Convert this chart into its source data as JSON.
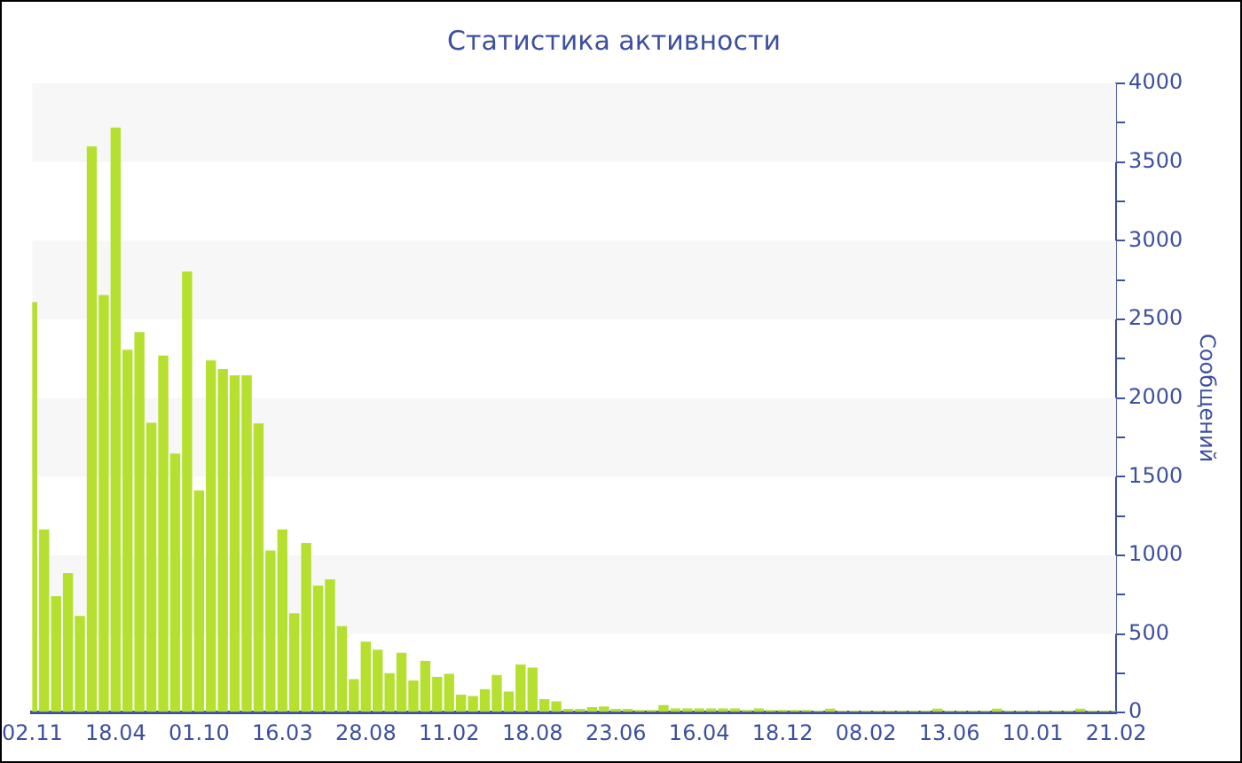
{
  "chart_data": {
    "type": "bar",
    "title": "Статистика активности",
    "ylabel": "Сообщений",
    "categories": [
      "02.11",
      null,
      null,
      null,
      null,
      null,
      null,
      "18.04",
      null,
      null,
      null,
      null,
      null,
      null,
      "01.10",
      null,
      null,
      null,
      null,
      null,
      null,
      "16.03",
      null,
      null,
      null,
      null,
      null,
      null,
      "28.08",
      null,
      null,
      null,
      null,
      null,
      null,
      "11.02",
      null,
      null,
      null,
      null,
      null,
      null,
      "18.08",
      null,
      null,
      null,
      null,
      null,
      null,
      "23.06",
      null,
      null,
      null,
      null,
      null,
      null,
      "16.04",
      null,
      null,
      null,
      null,
      null,
      null,
      "18.12",
      null,
      null,
      null,
      null,
      null,
      null,
      "08.02",
      null,
      null,
      null,
      null,
      null,
      null,
      "13.06",
      null,
      null,
      null,
      null,
      null,
      null,
      "10.01",
      null,
      null,
      null,
      null,
      null,
      null,
      "21.02"
    ],
    "values": [
      2610,
      1165,
      740,
      886,
      615,
      3600,
      2655,
      3720,
      2306,
      2420,
      1843,
      2270,
      1647,
      2804,
      1412,
      2239,
      2184,
      2145,
      2145,
      1839,
      1031,
      1165,
      631,
      1078,
      808,
      847,
      549,
      212,
      451,
      400,
      251,
      380,
      204,
      329,
      227,
      247,
      114,
      106,
      149,
      239,
      133,
      306,
      286,
      86,
      71,
      24,
      24,
      35,
      39,
      24,
      24,
      16,
      16,
      47,
      27,
      27,
      27,
      27,
      27,
      27,
      16,
      27,
      16,
      16,
      16,
      16,
      12,
      25,
      12,
      12,
      12,
      12,
      12,
      12,
      12,
      12,
      25,
      12,
      12,
      12,
      12,
      25,
      12,
      12,
      12,
      12,
      12,
      12,
      25,
      12,
      12,
      12
    ],
    "color": "#b5e030",
    "ylim": [
      0,
      4000
    ],
    "yticks": [
      0,
      {
        "value": 250,
        "label": null
      },
      500,
      {
        "value": 750,
        "label": null
      },
      1000,
      {
        "value": 1250,
        "label": null
      },
      1500,
      {
        "value": 1750,
        "label": null
      },
      2000,
      {
        "value": 2250,
        "label": null
      },
      2500,
      {
        "value": 2750,
        "label": null
      },
      3000,
      {
        "value": 3250,
        "label": null
      },
      3500,
      {
        "value": 3750,
        "label": null
      },
      4000
    ],
    "bands": [
      {
        "axis": "y",
        "from": 500,
        "to": 1000,
        "color": "#f7f7f7"
      },
      {
        "axis": "y",
        "from": 1500,
        "to": 2000,
        "color": "#f7f7f7"
      },
      {
        "axis": "y",
        "from": 2500,
        "to": 3000,
        "color": "#f7f7f7"
      },
      {
        "axis": "y",
        "from": 3500,
        "to": 4000,
        "color": "#f7f7f7"
      }
    ]
  }
}
